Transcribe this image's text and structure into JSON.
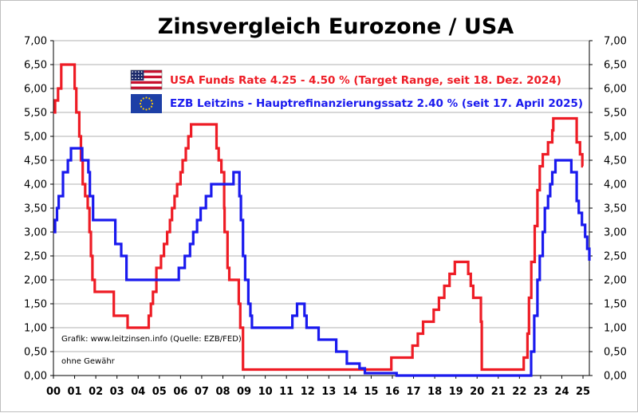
{
  "chart_data": {
    "type": "line",
    "title": "Zinsvergleich Eurozone / USA",
    "x_tick_labels": [
      "00",
      "01",
      "02",
      "03",
      "04",
      "05",
      "06",
      "07",
      "08",
      "09",
      "10",
      "11",
      "12",
      "13",
      "14",
      "15",
      "16",
      "17",
      "18",
      "19",
      "20",
      "21",
      "22",
      "23",
      "24",
      "25"
    ],
    "x_range": [
      2000,
      2025.3
    ],
    "y_tick_labels": [
      "0,00",
      "0,50",
      "1,00",
      "1,50",
      "2,00",
      "2,50",
      "3,00",
      "3,50",
      "4,00",
      "4,50",
      "5,00",
      "5,50",
      "6,00",
      "6,50",
      "7,00"
    ],
    "ylim": [
      0,
      7
    ],
    "grid": "horizontal",
    "right_axis_mirrors_left": true,
    "series": [
      {
        "name": "USA Funds Rate 4.25 - 4.50 % (Target Range, seit 18. Dez. 2024)",
        "color": "#ee1c25",
        "step": true,
        "points": [
          [
            2000.0,
            5.5
          ],
          [
            2000.08,
            5.75
          ],
          [
            2000.22,
            6.0
          ],
          [
            2000.37,
            6.5
          ],
          [
            2001.0,
            6.0
          ],
          [
            2001.08,
            5.5
          ],
          [
            2001.22,
            5.0
          ],
          [
            2001.3,
            4.5
          ],
          [
            2001.38,
            4.0
          ],
          [
            2001.5,
            3.75
          ],
          [
            2001.62,
            3.5
          ],
          [
            2001.7,
            3.0
          ],
          [
            2001.77,
            2.5
          ],
          [
            2001.84,
            2.0
          ],
          [
            2001.95,
            1.75
          ],
          [
            2002.85,
            1.25
          ],
          [
            2003.5,
            1.0
          ],
          [
            2004.5,
            1.25
          ],
          [
            2004.6,
            1.5
          ],
          [
            2004.7,
            1.75
          ],
          [
            2004.86,
            2.25
          ],
          [
            2004.95,
            2.25
          ],
          [
            2005.08,
            2.5
          ],
          [
            2005.22,
            2.75
          ],
          [
            2005.37,
            3.0
          ],
          [
            2005.5,
            3.25
          ],
          [
            2005.6,
            3.5
          ],
          [
            2005.72,
            3.75
          ],
          [
            2005.84,
            4.0
          ],
          [
            2006.0,
            4.25
          ],
          [
            2006.1,
            4.5
          ],
          [
            2006.25,
            4.75
          ],
          [
            2006.37,
            5.0
          ],
          [
            2006.5,
            5.25
          ],
          [
            2007.7,
            4.75
          ],
          [
            2007.8,
            4.5
          ],
          [
            2007.93,
            4.25
          ],
          [
            2008.06,
            3.5
          ],
          [
            2008.08,
            3.0
          ],
          [
            2008.22,
            2.25
          ],
          [
            2008.3,
            2.0
          ],
          [
            2008.75,
            1.5
          ],
          [
            2008.82,
            1.0
          ],
          [
            2008.95,
            0.125
          ],
          [
            2015.95,
            0.375
          ],
          [
            2016.95,
            0.625
          ],
          [
            2017.2,
            0.875
          ],
          [
            2017.45,
            1.125
          ],
          [
            2017.95,
            1.375
          ],
          [
            2018.2,
            1.625
          ],
          [
            2018.45,
            1.875
          ],
          [
            2018.7,
            2.125
          ],
          [
            2018.95,
            2.375
          ],
          [
            2019.58,
            2.125
          ],
          [
            2019.7,
            1.875
          ],
          [
            2019.82,
            1.625
          ],
          [
            2020.18,
            1.125
          ],
          [
            2020.22,
            0.125
          ],
          [
            2022.2,
            0.375
          ],
          [
            2022.38,
            0.875
          ],
          [
            2022.45,
            1.625
          ],
          [
            2022.56,
            2.375
          ],
          [
            2022.72,
            3.125
          ],
          [
            2022.85,
            3.875
          ],
          [
            2022.96,
            4.375
          ],
          [
            2023.1,
            4.625
          ],
          [
            2023.35,
            4.875
          ],
          [
            2023.55,
            5.125
          ],
          [
            2023.6,
            5.375
          ],
          [
            2024.7,
            4.875
          ],
          [
            2024.86,
            4.625
          ],
          [
            2024.97,
            4.375
          ],
          [
            2025.0,
            4.375
          ]
        ]
      },
      {
        "name": "EZB Leitzins - Hauptrefinanzierungssatz 2.40 % (seit 17. April 2025)",
        "color": "#1a1aee",
        "step": true,
        "points": [
          [
            2000.0,
            3.0
          ],
          [
            2000.08,
            3.25
          ],
          [
            2000.17,
            3.5
          ],
          [
            2000.25,
            3.75
          ],
          [
            2000.45,
            4.25
          ],
          [
            2000.68,
            4.5
          ],
          [
            2000.83,
            4.75
          ],
          [
            2001.36,
            4.5
          ],
          [
            2001.65,
            4.25
          ],
          [
            2001.72,
            3.75
          ],
          [
            2001.87,
            3.25
          ],
          [
            2002.92,
            2.75
          ],
          [
            2003.2,
            2.5
          ],
          [
            2003.45,
            2.0
          ],
          [
            2005.92,
            2.25
          ],
          [
            2006.2,
            2.5
          ],
          [
            2006.45,
            2.75
          ],
          [
            2006.6,
            3.0
          ],
          [
            2006.78,
            3.25
          ],
          [
            2006.95,
            3.5
          ],
          [
            2007.2,
            3.75
          ],
          [
            2007.45,
            4.0
          ],
          [
            2008.5,
            4.25
          ],
          [
            2008.78,
            3.75
          ],
          [
            2008.85,
            3.25
          ],
          [
            2008.95,
            2.5
          ],
          [
            2009.05,
            2.0
          ],
          [
            2009.2,
            1.5
          ],
          [
            2009.3,
            1.25
          ],
          [
            2009.37,
            1.0
          ],
          [
            2011.28,
            1.25
          ],
          [
            2011.5,
            1.5
          ],
          [
            2011.85,
            1.25
          ],
          [
            2011.95,
            1.0
          ],
          [
            2012.52,
            0.75
          ],
          [
            2013.35,
            0.5
          ],
          [
            2013.85,
            0.25
          ],
          [
            2014.45,
            0.15
          ],
          [
            2014.7,
            0.05
          ],
          [
            2016.2,
            0.0
          ],
          [
            2022.55,
            0.5
          ],
          [
            2022.7,
            1.25
          ],
          [
            2022.85,
            2.0
          ],
          [
            2022.96,
            2.5
          ],
          [
            2023.1,
            3.0
          ],
          [
            2023.2,
            3.5
          ],
          [
            2023.35,
            3.75
          ],
          [
            2023.45,
            4.0
          ],
          [
            2023.55,
            4.25
          ],
          [
            2023.7,
            4.5
          ],
          [
            2024.45,
            4.25
          ],
          [
            2024.7,
            3.65
          ],
          [
            2024.8,
            3.4
          ],
          [
            2024.95,
            3.15
          ],
          [
            2025.1,
            2.9
          ],
          [
            2025.2,
            2.65
          ],
          [
            2025.3,
            2.4
          ]
        ]
      }
    ],
    "legend_flags": [
      "usa-flag",
      "eu-flag"
    ],
    "notes": [
      "Grafik: www.leitzinsen.info (Quelle: EZB/FED)",
      "ohne Gewähr"
    ]
  }
}
